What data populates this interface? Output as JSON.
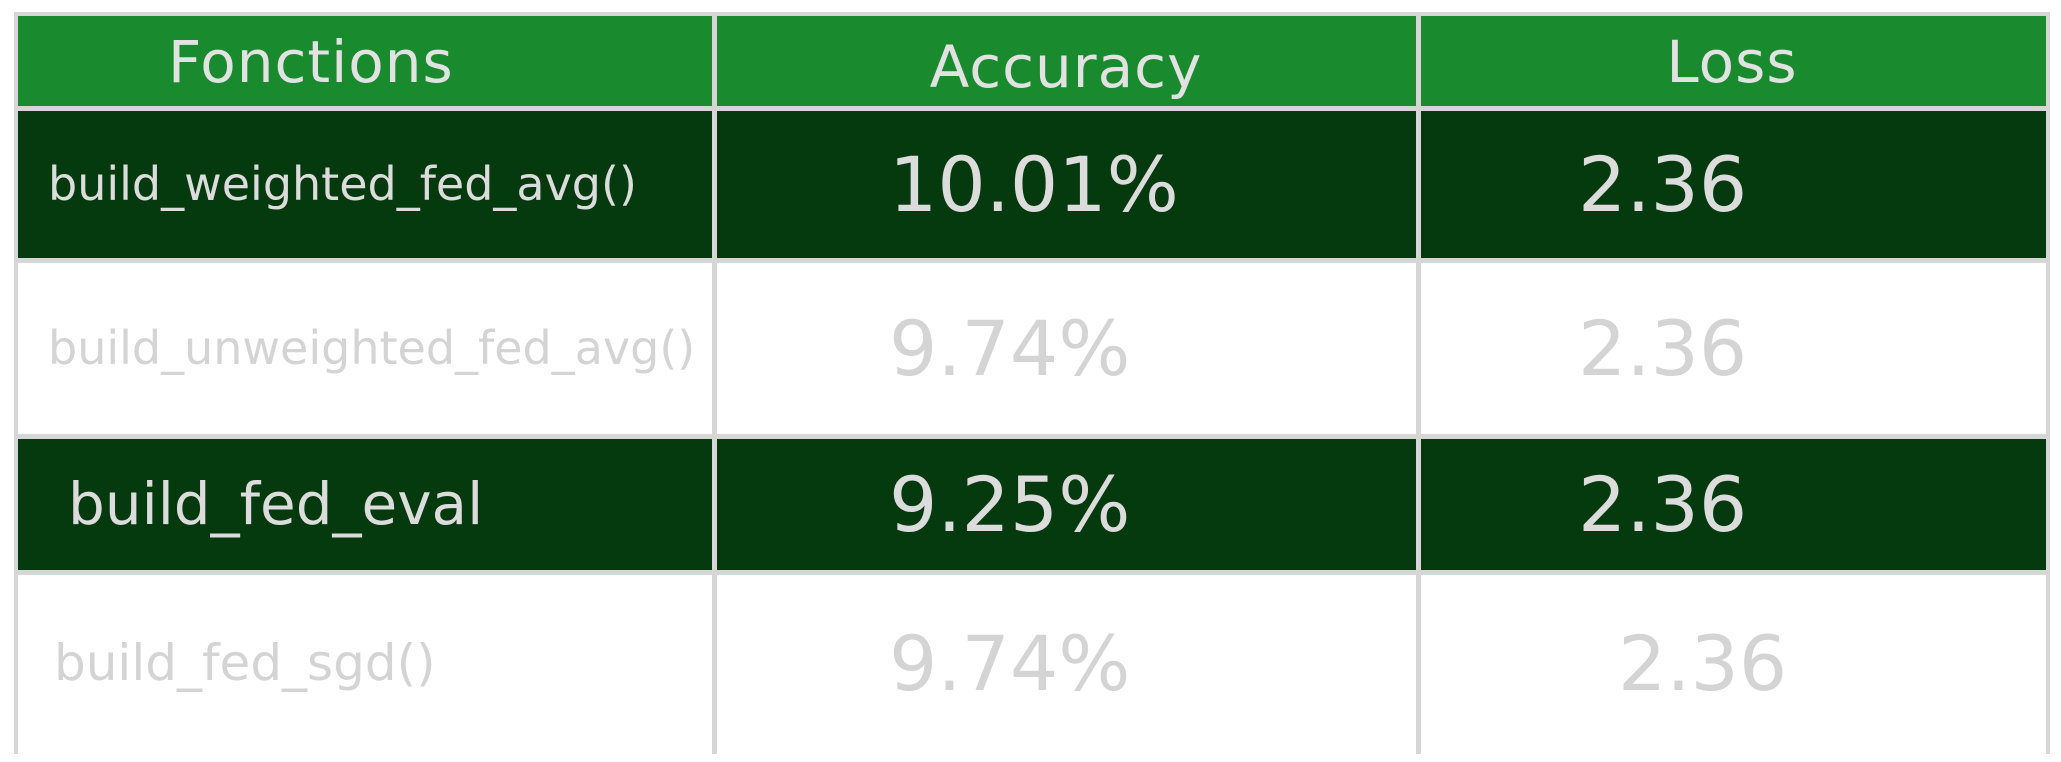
{
  "table": {
    "headers": {
      "function": "Fonctions",
      "accuracy": "Accuracy",
      "loss": "Loss"
    },
    "rows": [
      {
        "function": "build_weighted_fed_avg()",
        "accuracy": "10.01%",
        "loss": "2.36"
      },
      {
        "function": "build_unweighted_fed_avg()",
        "accuracy": "9.74%",
        "loss": "2.36"
      },
      {
        "function": "build_fed_eval",
        "accuracy": "9.25%",
        "loss": "2.36"
      },
      {
        "function": "build_fed_sgd()",
        "accuracy": "9.74%",
        "loss": "2.36"
      }
    ]
  },
  "colors": {
    "header_bg": "#1a8a2f",
    "dark_row_bg": "#053a0e",
    "light_row_bg": "#ffffff",
    "grid_line": "#d6d6d6",
    "text_light": "#dcdcdc"
  }
}
